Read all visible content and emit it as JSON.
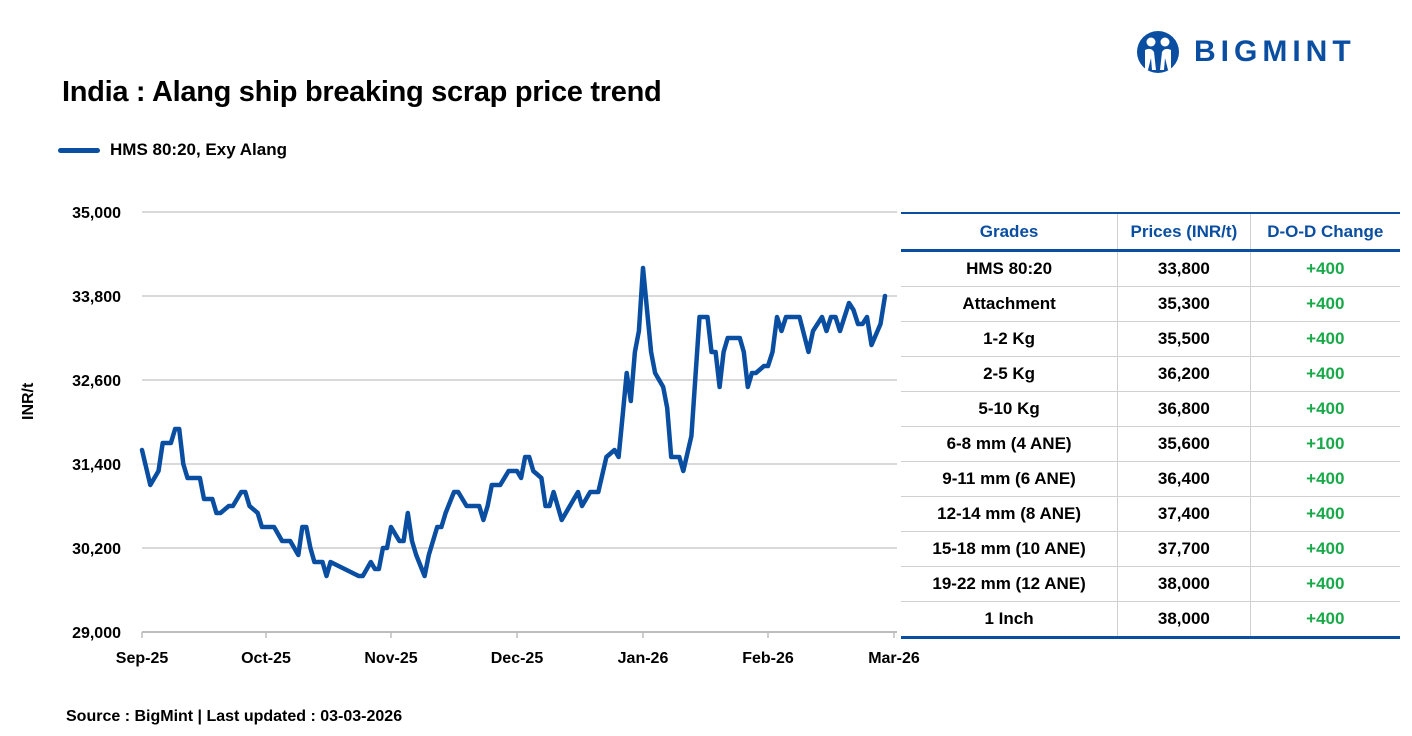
{
  "brand": {
    "logo_text": "BIGMINT",
    "color": "#0a4ea2"
  },
  "title": "India : Alang ship breaking scrap price trend",
  "source": "Source : BigMint | Last updated : 03-03-2026",
  "chart_data": {
    "type": "line",
    "ylabel": "INR/t",
    "ylim": [
      29000,
      35000
    ],
    "yticks": [
      "29,000",
      "30,200",
      "31,400",
      "32,600",
      "33,800",
      "35,000"
    ],
    "ytick_values": [
      29000,
      30200,
      31400,
      32600,
      33800,
      35000
    ],
    "xticks": [
      "Sep-25",
      "Oct-25",
      "Nov-25",
      "Dec-25",
      "Jan-26",
      "Feb-26",
      "Mar-26"
    ],
    "xtick_dates": [
      "2025-09-01",
      "2025-10-01",
      "2025-11-01",
      "2025-12-01",
      "2026-01-01",
      "2026-02-01",
      "2026-03-01"
    ],
    "grid": "horizontal",
    "legend": "top-left",
    "series": [
      {
        "name": "HMS 80:20, Exy Alang",
        "color": "#0a4ea2",
        "points": [
          [
            "2025-09-01",
            31600
          ],
          [
            "2025-09-03",
            31100
          ],
          [
            "2025-09-05",
            31300
          ],
          [
            "2025-09-06",
            31700
          ],
          [
            "2025-09-08",
            31700
          ],
          [
            "2025-09-09",
            31900
          ],
          [
            "2025-09-10",
            31900
          ],
          [
            "2025-09-11",
            31400
          ],
          [
            "2025-09-12",
            31200
          ],
          [
            "2025-09-15",
            31200
          ],
          [
            "2025-09-16",
            30900
          ],
          [
            "2025-09-18",
            30900
          ],
          [
            "2025-09-19",
            30700
          ],
          [
            "2025-09-20",
            30700
          ],
          [
            "2025-09-22",
            30800
          ],
          [
            "2025-09-23",
            30800
          ],
          [
            "2025-09-25",
            31000
          ],
          [
            "2025-09-26",
            31000
          ],
          [
            "2025-09-27",
            30800
          ],
          [
            "2025-09-29",
            30700
          ],
          [
            "2025-09-30",
            30500
          ],
          [
            "2025-10-03",
            30500
          ],
          [
            "2025-10-05",
            30300
          ],
          [
            "2025-10-07",
            30300
          ],
          [
            "2025-10-09",
            30100
          ],
          [
            "2025-10-10",
            30500
          ],
          [
            "2025-10-11",
            30500
          ],
          [
            "2025-10-12",
            30200
          ],
          [
            "2025-10-13",
            30000
          ],
          [
            "2025-10-15",
            30000
          ],
          [
            "2025-10-16",
            29800
          ],
          [
            "2025-10-17",
            30000
          ],
          [
            "2025-10-24",
            29800
          ],
          [
            "2025-10-25",
            29800
          ],
          [
            "2025-10-27",
            30000
          ],
          [
            "2025-10-28",
            29900
          ],
          [
            "2025-10-29",
            29900
          ],
          [
            "2025-10-30",
            30200
          ],
          [
            "2025-10-31",
            30200
          ],
          [
            "2025-11-01",
            30500
          ],
          [
            "2025-11-03",
            30300
          ],
          [
            "2025-11-04",
            30300
          ],
          [
            "2025-11-05",
            30700
          ],
          [
            "2025-11-06",
            30300
          ],
          [
            "2025-11-07",
            30100
          ],
          [
            "2025-11-09",
            29800
          ],
          [
            "2025-11-10",
            30100
          ],
          [
            "2025-11-12",
            30500
          ],
          [
            "2025-11-13",
            30500
          ],
          [
            "2025-11-14",
            30700
          ],
          [
            "2025-11-16",
            31000
          ],
          [
            "2025-11-17",
            31000
          ],
          [
            "2025-11-19",
            30800
          ],
          [
            "2025-11-22",
            30800
          ],
          [
            "2025-11-23",
            30600
          ],
          [
            "2025-11-24",
            30800
          ],
          [
            "2025-11-25",
            31100
          ],
          [
            "2025-11-27",
            31100
          ],
          [
            "2025-11-29",
            31300
          ],
          [
            "2025-11-30",
            31300
          ],
          [
            "2025-12-01",
            31300
          ],
          [
            "2025-12-02",
            31200
          ],
          [
            "2025-12-03",
            31500
          ],
          [
            "2025-12-04",
            31500
          ],
          [
            "2025-12-05",
            31300
          ],
          [
            "2025-12-07",
            31200
          ],
          [
            "2025-12-08",
            30800
          ],
          [
            "2025-12-09",
            30800
          ],
          [
            "2025-12-10",
            31000
          ],
          [
            "2025-12-12",
            30600
          ],
          [
            "2025-12-16",
            31000
          ],
          [
            "2025-12-17",
            30800
          ],
          [
            "2025-12-19",
            31000
          ],
          [
            "2025-12-21",
            31000
          ],
          [
            "2025-12-23",
            31500
          ],
          [
            "2025-12-25",
            31600
          ],
          [
            "2025-12-26",
            31500
          ],
          [
            "2025-12-27",
            32100
          ],
          [
            "2025-12-28",
            32700
          ],
          [
            "2025-12-29",
            32300
          ],
          [
            "2025-12-30",
            33000
          ],
          [
            "2025-12-31",
            33300
          ],
          [
            "2026-01-01",
            34200
          ],
          [
            "2026-01-03",
            33000
          ],
          [
            "2026-01-04",
            32700
          ],
          [
            "2026-01-06",
            32500
          ],
          [
            "2026-01-07",
            32200
          ],
          [
            "2026-01-08",
            31500
          ],
          [
            "2026-01-10",
            31500
          ],
          [
            "2026-01-11",
            31300
          ],
          [
            "2026-01-13",
            31800
          ],
          [
            "2026-01-15",
            33500
          ],
          [
            "2026-01-17",
            33500
          ],
          [
            "2026-01-18",
            33000
          ],
          [
            "2026-01-19",
            33000
          ],
          [
            "2026-01-20",
            32500
          ],
          [
            "2026-01-21",
            33000
          ],
          [
            "2026-01-22",
            33200
          ],
          [
            "2026-01-25",
            33200
          ],
          [
            "2026-01-26",
            33000
          ],
          [
            "2026-01-27",
            32500
          ],
          [
            "2026-01-28",
            32700
          ],
          [
            "2026-01-29",
            32700
          ],
          [
            "2026-01-31",
            32800
          ],
          [
            "2026-02-01",
            32800
          ],
          [
            "2026-02-02",
            33000
          ],
          [
            "2026-02-03",
            33500
          ],
          [
            "2026-02-04",
            33300
          ],
          [
            "2026-02-05",
            33500
          ],
          [
            "2026-02-08",
            33500
          ],
          [
            "2026-02-10",
            33000
          ],
          [
            "2026-02-11",
            33300
          ],
          [
            "2026-02-13",
            33500
          ],
          [
            "2026-02-14",
            33300
          ],
          [
            "2026-02-15",
            33500
          ],
          [
            "2026-02-16",
            33500
          ],
          [
            "2026-02-17",
            33300
          ],
          [
            "2026-02-18",
            33500
          ],
          [
            "2026-02-19",
            33700
          ],
          [
            "2026-02-20",
            33600
          ],
          [
            "2026-02-21",
            33400
          ],
          [
            "2026-02-22",
            33400
          ],
          [
            "2026-02-23",
            33500
          ],
          [
            "2026-02-24",
            33100
          ],
          [
            "2026-02-26",
            33400
          ],
          [
            "2026-02-27",
            33800
          ]
        ]
      }
    ]
  },
  "table": {
    "headers": [
      "Grades",
      "Prices (INR/t)",
      "D-O-D Change"
    ],
    "rows": [
      [
        "HMS 80:20",
        "33,800",
        "+400"
      ],
      [
        "Attachment",
        "35,300",
        "+400"
      ],
      [
        "1-2 Kg",
        "35,500",
        "+400"
      ],
      [
        "2-5 Kg",
        "36,200",
        "+400"
      ],
      [
        "5-10 Kg",
        "36,800",
        "+400"
      ],
      [
        "6-8 mm (4 ANE)",
        "35,600",
        "+100"
      ],
      [
        "9-11 mm (6 ANE)",
        "36,400",
        "+400"
      ],
      [
        "12-14 mm (8 ANE)",
        "37,400",
        "+400"
      ],
      [
        "15-18 mm (10 ANE)",
        "37,700",
        "+400"
      ],
      [
        "19-22 mm (12 ANE)",
        "38,000",
        "+400"
      ],
      [
        "1 Inch",
        "38,000",
        "+400"
      ]
    ],
    "change_color": "#1aa94a"
  }
}
